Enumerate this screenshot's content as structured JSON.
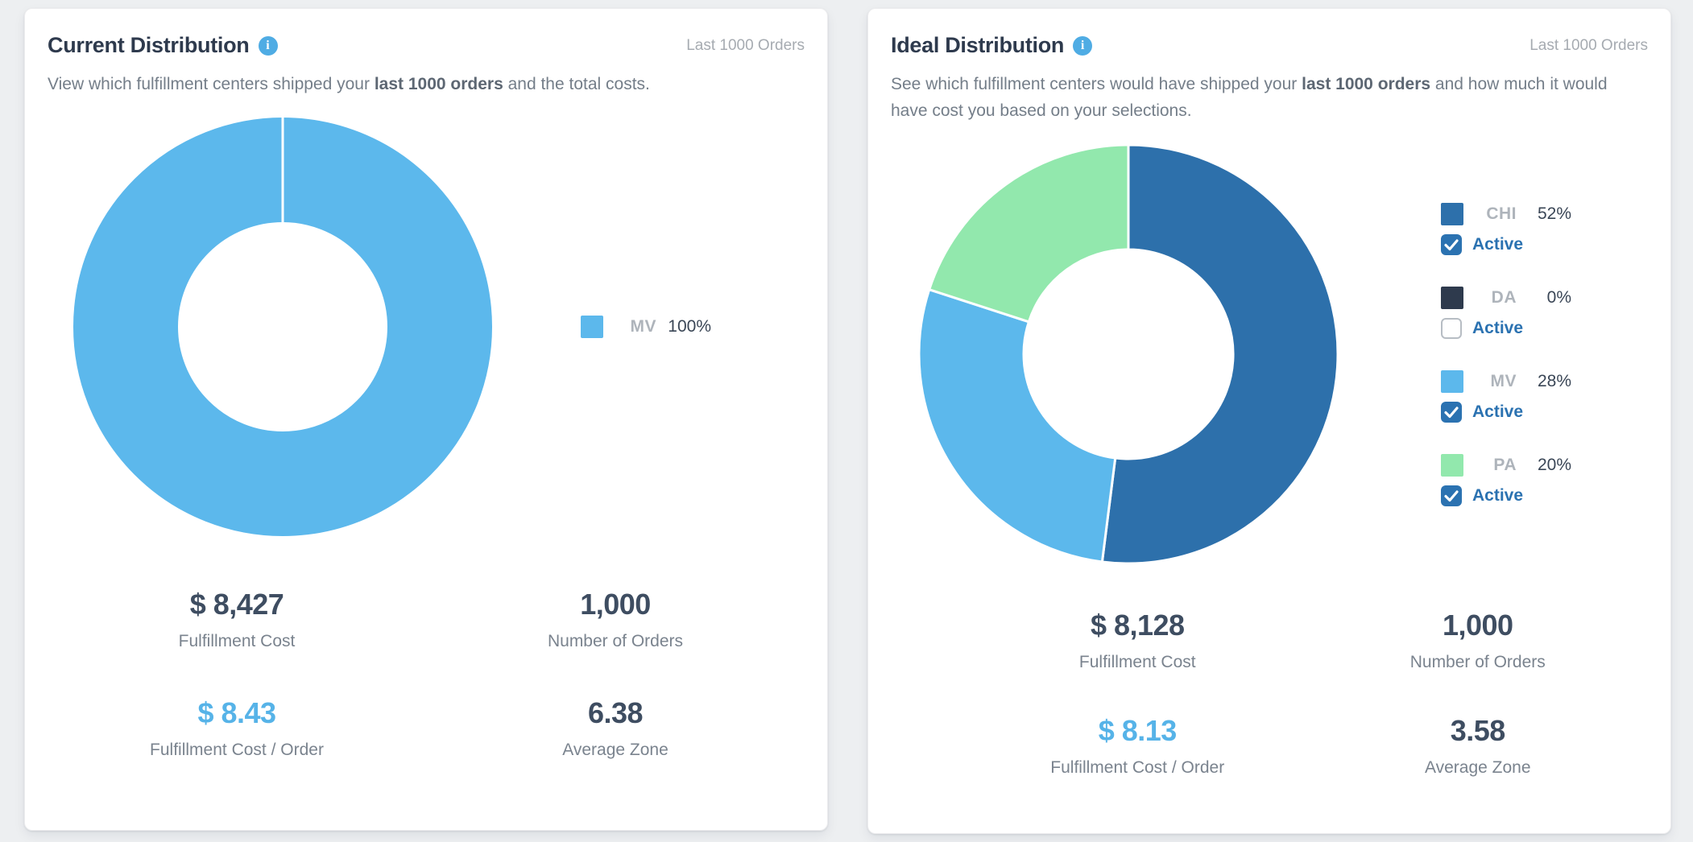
{
  "page": {
    "background": "#EDEFF1",
    "accent_blue": "#56B3E8",
    "link_blue": "#2B72B1"
  },
  "cards": [
    {
      "title": "Current Distribution",
      "info_icon": "i",
      "period": "Last 1000 Orders",
      "description": {
        "pre": "View which fulfillment centers shipped your ",
        "bold": "last 1000 orders",
        "post": " and the total costs."
      },
      "legend": [
        {
          "code": "MV",
          "pct": "100%",
          "color": "#5CB8EC"
        }
      ],
      "stats": [
        {
          "value": "$ 8,427",
          "label": "Fulfillment Cost"
        },
        {
          "value": "1,000",
          "label": "Number of Orders"
        },
        {
          "value": "$ 8.43",
          "label": "Fulfillment Cost / Order"
        },
        {
          "value": "6.38",
          "label": "Average Zone"
        }
      ]
    },
    {
      "title": "Ideal Distribution",
      "info_icon": "i",
      "period": "Last 1000 Orders",
      "description": {
        "pre": "See which fulfillment centers would have shipped your ",
        "bold": "last 1000 orders",
        "post": " and how much it would have cost you based on your selections."
      },
      "legend": [
        {
          "code": "CHI",
          "pct": "52%",
          "color": "#2D70AB",
          "active_label": "Active",
          "active": "true"
        },
        {
          "code": "DA",
          "pct": "0%",
          "color": "#2E3A4D",
          "active_label": "Active",
          "active": "false"
        },
        {
          "code": "MV",
          "pct": "28%",
          "color": "#5CB8EC",
          "active_label": "Active",
          "active": "true"
        },
        {
          "code": "PA",
          "pct": "20%",
          "color": "#92E8AD",
          "active_label": "Active",
          "active": "true"
        }
      ],
      "stats": [
        {
          "value": "$ 8,128",
          "label": "Fulfillment Cost"
        },
        {
          "value": "1,000",
          "label": "Number of Orders"
        },
        {
          "value": "$ 8.13",
          "label": "Fulfillment Cost / Order"
        },
        {
          "value": "3.58",
          "label": "Average Zone"
        }
      ]
    }
  ],
  "chart_data": [
    {
      "type": "pie",
      "subtype": "donut",
      "title": "Current Distribution",
      "subtitle": "Last 1000 Orders",
      "categories": [
        "MV"
      ],
      "values": [
        100
      ],
      "unit": "percent",
      "colors": [
        "#5CB8EC"
      ],
      "legend_position": "right",
      "stats": {
        "fulfillment_cost": "$ 8,427",
        "number_of_orders": "1,000",
        "fulfillment_cost_per_order": "$ 8.43",
        "average_zone": "6.38"
      }
    },
    {
      "type": "pie",
      "subtype": "donut",
      "title": "Ideal Distribution",
      "subtitle": "Last 1000 Orders",
      "categories": [
        "CHI",
        "DA",
        "MV",
        "PA"
      ],
      "values": [
        52,
        0,
        28,
        20
      ],
      "unit": "percent",
      "colors": [
        "#2D70AB",
        "#2E3A4D",
        "#5CB8EC",
        "#92E8AD"
      ],
      "active": [
        true,
        false,
        true,
        true
      ],
      "legend_position": "right",
      "stats": {
        "fulfillment_cost": "$ 8,128",
        "number_of_orders": "1,000",
        "fulfillment_cost_per_order": "$ 8.13",
        "average_zone": "3.58"
      }
    }
  ]
}
